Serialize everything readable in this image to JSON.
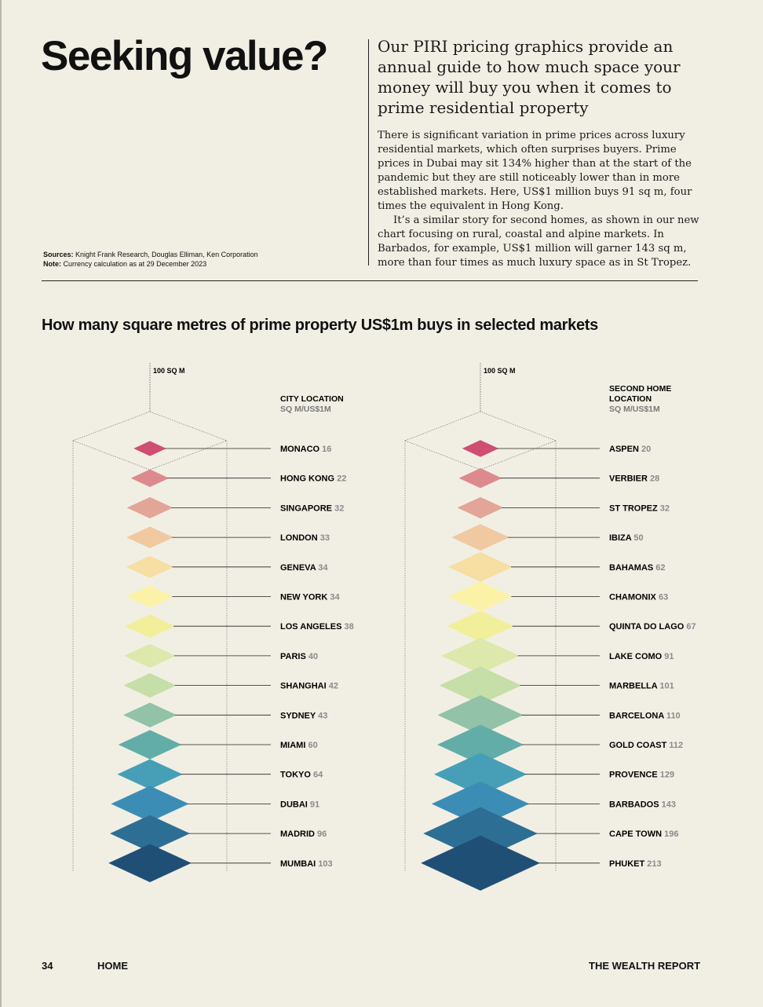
{
  "title": "Seeking value?",
  "sources": {
    "sources_label": "Sources:",
    "sources_text": "Knight Frank Research, Douglas Elliman, Ken Corporation",
    "note_label": "Note:",
    "note_text": "Currency calculation as at 29 December 2023"
  },
  "lede": "Our PIRI pricing graphics provide an annual guide to how much space your money will buy you when it comes to prime residential property",
  "body": [
    "There is significant variation in prime prices across luxury residential markets, which often surprises buyers. Prime prices in Dubai may sit 134% higher than at the start of the pandemic but they are still noticeably lower than in more established markets. Here, US$1 million buys 91 sq m, four times the equivalent in Hong Kong.",
    "It’s a similar story for second homes, as shown in our new chart focusing on rural, coastal and alpine markets. In Barbados, for example, US$1 million will garner 143 sq m, more than four times as much luxury space as in St Tropez."
  ],
  "chart_title": "How many square metres of prime property US$1m buys in selected markets",
  "chart_data": [
    {
      "type": "other",
      "reference_label": "100 SQ M",
      "header": [
        "CITY LOCATION"
      ],
      "subheader": "SQ M/US$1M",
      "categories": [
        "MONACO",
        "HONG KONG",
        "SINGAPORE",
        "LONDON",
        "GENEVA",
        "NEW YORK",
        "LOS ANGELES",
        "PARIS",
        "SHANGHAI",
        "SYDNEY",
        "MIAMI",
        "TOKYO",
        "DUBAI",
        "MADRID",
        "MUMBAI"
      ],
      "values": [
        16,
        22,
        32,
        33,
        34,
        34,
        38,
        40,
        42,
        43,
        60,
        64,
        91,
        96,
        103
      ]
    },
    {
      "type": "other",
      "reference_label": "100 SQ M",
      "header": [
        "SECOND HOME",
        "LOCATION"
      ],
      "subheader": "SQ M/US$1M",
      "categories": [
        "ASPEN",
        "VERBIER",
        "ST TROPEZ",
        "IBIZA",
        "BAHAMAS",
        "CHAMONIX",
        "QUINTA DO LAGO",
        "LAKE COMO",
        "MARBELLA",
        "BARCELONA",
        "GOLD COAST",
        "PROVENCE",
        "BARBADOS",
        "CAPE TOWN",
        "PHUKET"
      ],
      "values": [
        20,
        28,
        32,
        50,
        62,
        63,
        67,
        91,
        101,
        110,
        112,
        129,
        143,
        196,
        213
      ]
    }
  ],
  "colors": [
    "#cf4f73",
    "#dd8a8e",
    "#e3a597",
    "#f0c9a0",
    "#f7dea2",
    "#fbf2a7",
    "#f1ef99",
    "#dde8ac",
    "#c6dea8",
    "#92c2a7",
    "#62ada8",
    "#469fb7",
    "#3c8db6",
    "#2d6e94",
    "#204f76"
  ],
  "footer": {
    "page_number": "34",
    "section": "HOME",
    "publication": "THE WEALTH REPORT"
  }
}
